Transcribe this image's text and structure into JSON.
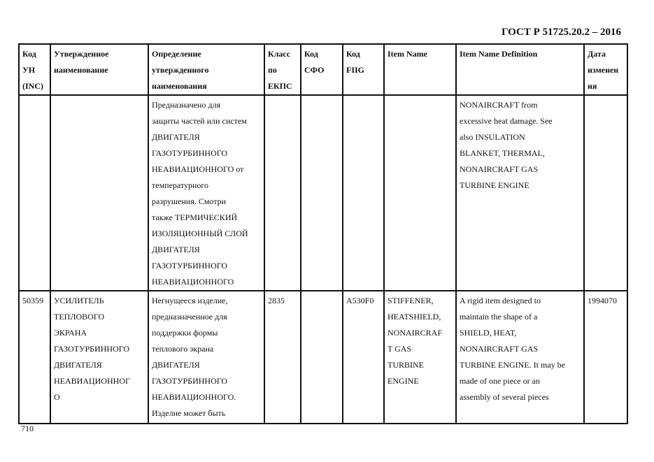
{
  "header": {
    "doc_title": "ГОСТ Р 51725.20.2 – 2016"
  },
  "table": {
    "columns": [
      [
        "Код",
        "УН",
        "(INC)"
      ],
      [
        "Утвержденное",
        "наименование"
      ],
      [
        "Определение",
        "утвержденного",
        "наименования"
      ],
      [
        "Класс",
        "по",
        "ЕКПС"
      ],
      [
        "Код",
        "СФО"
      ],
      [
        "Код",
        "FIIG"
      ],
      [
        "Item Name"
      ],
      [
        "Item Name Definition"
      ],
      [
        "Дата",
        "изменен",
        "ия"
      ]
    ],
    "rows": [
      [
        [],
        [],
        [
          "Предназначено для",
          "защиты частей или систем",
          "ДВИГАТЕЛЯ",
          "ГАЗОТУРБИННОГО",
          "НЕАВИАЦИОННОГО от",
          "температурного",
          "разрушения. Смотри",
          "также ТЕРМИЧЕСКИЙ",
          "ИЗОЛЯЦИОННЫЙ СЛОЙ",
          "ДВИГАТЕЛЯ",
          "ГАЗОТУРБИННОГО",
          "НЕАВИАЦИОННОГО"
        ],
        [],
        [],
        [],
        [],
        [
          "NONAIRCRAFT from",
          "excessive heat damage.  See",
          "also INSULATION",
          "BLANKET, THERMAL,",
          "NONAIRCRAFT GAS",
          "TURBINE ENGINE"
        ],
        []
      ],
      [
        [
          "50359"
        ],
        [
          "УСИЛИТЕЛЬ",
          "ТЕПЛОВОГО",
          "ЭКРАНА",
          "ГАЗОТУРБИННОГО",
          "ДВИГАТЕЛЯ",
          "НЕАВИАЦИОННОГ",
          "О"
        ],
        [
          "Негнущееся изделие,",
          "предназначенное для",
          "поддержки формы",
          "теплового экрана",
          "ДВИГАТЕЛЯ",
          "ГАЗОТУРБИННОГО",
          "НЕАВИАЦИОННОГО.",
          "Изделие может быть"
        ],
        [
          "2835"
        ],
        [],
        [
          "A530F0"
        ],
        [
          "STIFFENER,",
          "HEATSHIELD,",
          "NONAIRCRAF",
          "T GAS",
          "TURBINE",
          "ENGINE"
        ],
        [
          "A rigid item designed to",
          "maintain the shape of a",
          "SHIELD, HEAT,",
          "NONAIRCRAFT GAS",
          "TURBINE ENGINE.  It may be",
          "made of one piece or an",
          "assembly of several pieces"
        ],
        [
          "1994070"
        ]
      ]
    ]
  },
  "footer": {
    "page_number": "710"
  }
}
